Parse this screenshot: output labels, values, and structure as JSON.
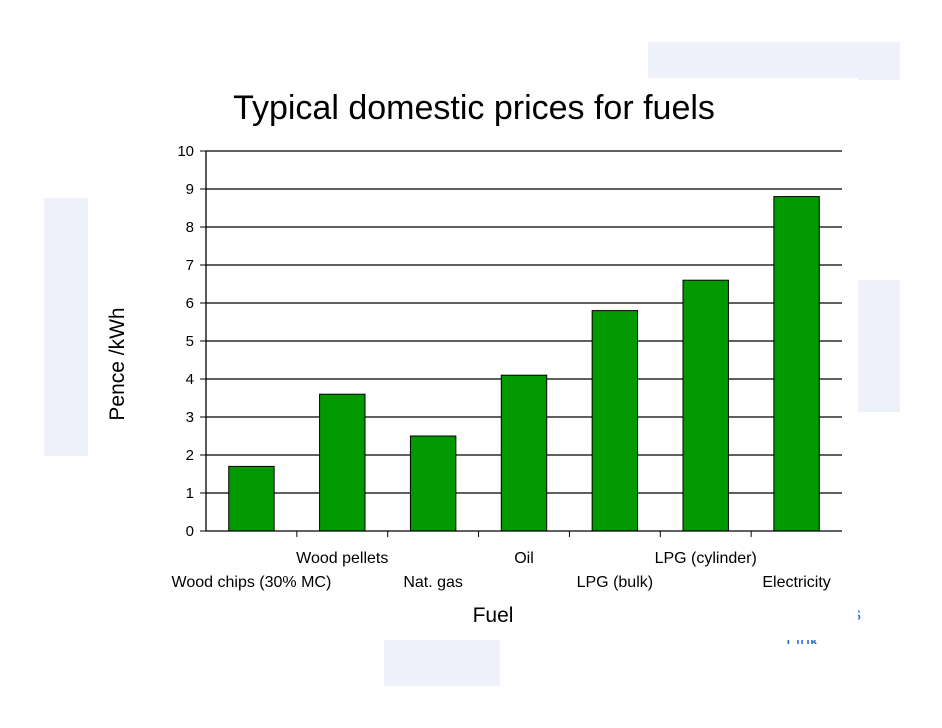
{
  "chart_data": {
    "type": "bar",
    "title": "Typical domestic prices for fuels",
    "xlabel": "Fuel",
    "ylabel": "Pence /kWh",
    "ylim": [
      0,
      10
    ],
    "yticks": [
      "0",
      "1",
      "2",
      "3",
      "4",
      "5",
      "6",
      "7",
      "8",
      "9",
      "10"
    ],
    "grid": true,
    "bar_color": "#009900",
    "categories": [
      "Wood chips (30% MC)",
      "Wood pellets",
      "Nat. gas",
      "Oil",
      "LPG (bulk)",
      "LPG (cylinder)",
      "Electricity"
    ],
    "values": [
      1.7,
      3.6,
      2.5,
      4.1,
      5.8,
      6.6,
      8.8
    ]
  },
  "background": {
    "fragment_1": "s",
    "fragment_2": "Link"
  }
}
